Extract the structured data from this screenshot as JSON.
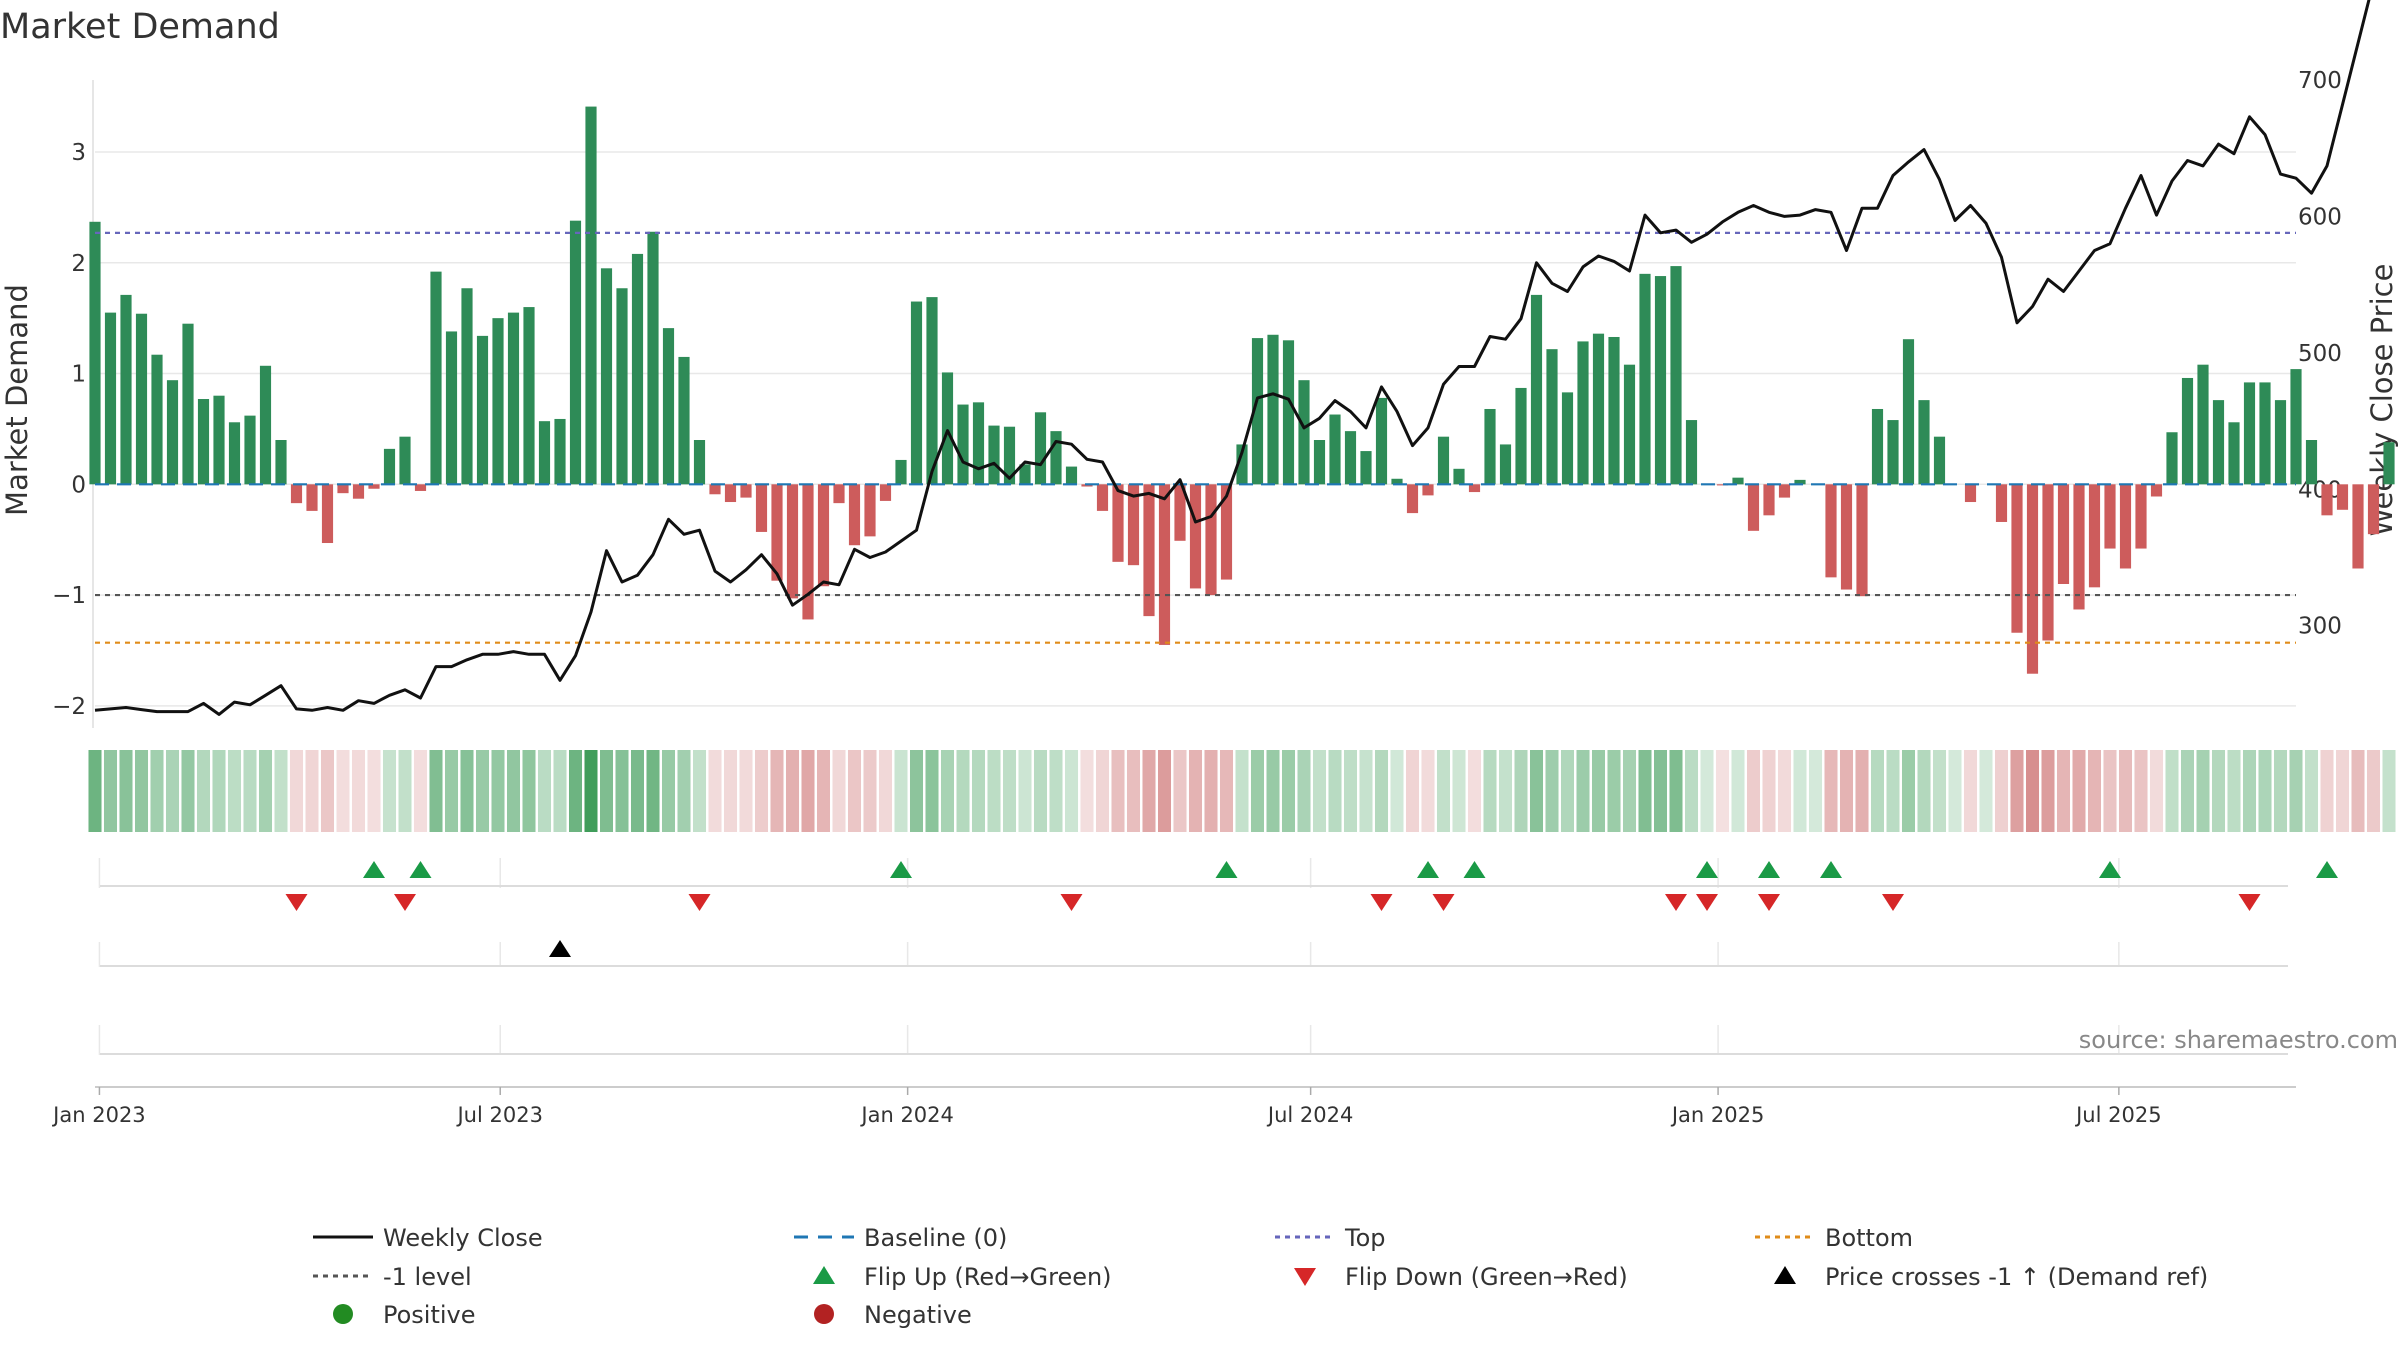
{
  "chart_data": {
    "type": "bar",
    "title": "Market Demand",
    "ylabel": "Market Demand",
    "y2label": "Weekly Close Price",
    "ylim": [
      -2.2,
      3.65
    ],
    "y2lim": [
      225,
      700
    ],
    "yticks": [
      -2,
      -1,
      0,
      1,
      2,
      3
    ],
    "y2ticks": [
      300,
      400,
      500,
      600,
      700
    ],
    "x_start": "2022-12-30",
    "x_end": "2025-09-19",
    "xticks": [
      {
        "date": "2023-01-01",
        "label": "Jan 2023"
      },
      {
        "date": "2023-07-01",
        "label": "Jul 2023"
      },
      {
        "date": "2024-01-01",
        "label": "Jan 2024"
      },
      {
        "date": "2024-07-01",
        "label": "Jul 2024"
      },
      {
        "date": "2025-01-01",
        "label": "Jan 2025"
      },
      {
        "date": "2025-07-01",
        "label": "Jul 2025"
      }
    ],
    "first_week": "2022-12-30",
    "market_demand_weekly": [
      2.37,
      1.55,
      1.71,
      1.54,
      1.17,
      0.94,
      1.45,
      0.77,
      0.8,
      0.56,
      0.62,
      1.07,
      0.4,
      -0.17,
      -0.24,
      -0.53,
      -0.08,
      -0.13,
      -0.04,
      0.32,
      0.43,
      -0.06,
      1.92,
      1.38,
      1.77,
      1.34,
      1.5,
      1.55,
      1.6,
      0.57,
      0.59,
      2.38,
      3.41,
      1.95,
      1.77,
      2.08,
      2.28,
      1.41,
      1.15,
      0.4,
      -0.09,
      -0.16,
      -0.12,
      -0.43,
      -0.87,
      -1.03,
      -1.22,
      -0.92,
      -0.17,
      -0.55,
      -0.47,
      -0.15,
      0.22,
      1.65,
      1.69,
      1.01,
      0.72,
      0.74,
      0.53,
      0.52,
      0.18,
      0.65,
      0.48,
      0.16,
      -0.02,
      -0.24,
      -0.7,
      -0.73,
      -1.19,
      -1.45,
      -0.51,
      -0.94,
      -1.0,
      -0.86,
      0.36,
      1.32,
      1.35,
      1.3,
      0.94,
      0.4,
      0.63,
      0.48,
      0.3,
      0.78,
      0.05,
      -0.26,
      -0.1,
      0.43,
      0.14,
      -0.07,
      0.68,
      0.36,
      0.87,
      1.71,
      1.22,
      0.83,
      1.29,
      1.36,
      1.33,
      1.08,
      1.9,
      1.88,
      1.97,
      0.58,
      0.0,
      -0.01,
      0.06,
      -0.42,
      -0.28,
      -0.12,
      0.04,
      0.0,
      -0.84,
      -0.95,
      -1.01,
      0.68,
      0.58,
      1.31,
      0.76,
      0.43,
      0.0,
      -0.16,
      0.0,
      -0.34,
      -1.34,
      -1.71,
      -1.41,
      -0.9,
      -1.13,
      -0.93,
      -0.58,
      -0.76,
      -0.58,
      -0.11,
      0.47,
      0.96,
      1.08,
      0.76,
      0.56,
      0.92,
      0.92,
      0.76,
      1.04,
      0.4,
      -0.28,
      -0.23,
      -0.76,
      -0.45,
      0.38
    ],
    "weekly_close_anchors": [
      [
        0,
        238
      ],
      [
        2,
        240
      ],
      [
        4,
        237
      ],
      [
        6,
        237
      ],
      [
        7,
        243
      ],
      [
        8,
        235
      ],
      [
        9,
        244
      ],
      [
        10,
        242
      ],
      [
        11,
        249
      ],
      [
        12,
        256
      ],
      [
        13,
        239
      ],
      [
        14,
        238
      ],
      [
        15,
        240
      ],
      [
        16,
        238
      ],
      [
        17,
        245
      ],
      [
        18,
        243
      ],
      [
        19,
        249
      ],
      [
        20,
        253
      ],
      [
        21,
        247
      ],
      [
        22,
        270
      ],
      [
        23,
        270
      ],
      [
        24,
        275
      ],
      [
        25,
        279
      ],
      [
        26,
        279
      ],
      [
        27,
        281
      ],
      [
        28,
        279
      ],
      [
        29,
        279
      ],
      [
        30,
        260
      ],
      [
        31,
        278
      ],
      [
        32,
        310
      ],
      [
        33,
        355
      ],
      [
        34,
        332
      ],
      [
        35,
        337
      ],
      [
        36,
        352
      ],
      [
        37,
        378
      ],
      [
        38,
        367
      ],
      [
        39,
        370
      ],
      [
        40,
        340
      ],
      [
        41,
        332
      ],
      [
        42,
        341
      ],
      [
        43,
        352
      ],
      [
        44,
        338
      ],
      [
        45,
        315
      ],
      [
        46,
        323
      ],
      [
        47,
        332
      ],
      [
        48,
        330
      ],
      [
        49,
        356
      ],
      [
        50,
        350
      ],
      [
        51,
        354
      ],
      [
        52,
        362
      ],
      [
        53,
        370
      ],
      [
        54,
        413
      ],
      [
        55,
        443
      ],
      [
        56,
        420
      ],
      [
        57,
        415
      ],
      [
        58,
        419
      ],
      [
        59,
        408
      ],
      [
        60,
        420
      ],
      [
        61,
        418
      ],
      [
        62,
        435
      ],
      [
        63,
        433
      ],
      [
        64,
        422
      ],
      [
        65,
        420
      ],
      [
        66,
        399
      ],
      [
        67,
        395
      ],
      [
        68,
        397
      ],
      [
        69,
        393
      ],
      [
        70,
        407
      ],
      [
        71,
        376
      ],
      [
        72,
        380
      ],
      [
        73,
        395
      ],
      [
        74,
        427
      ],
      [
        75,
        467
      ],
      [
        76,
        470
      ],
      [
        77,
        466
      ],
      [
        78,
        445
      ],
      [
        79,
        452
      ],
      [
        80,
        465
      ],
      [
        81,
        457
      ],
      [
        82,
        445
      ],
      [
        83,
        475
      ],
      [
        84,
        457
      ],
      [
        85,
        432
      ],
      [
        86,
        445
      ],
      [
        87,
        477
      ],
      [
        88,
        490
      ],
      [
        89,
        490
      ],
      [
        90,
        512
      ],
      [
        91,
        510
      ],
      [
        92,
        525
      ],
      [
        93,
        566
      ],
      [
        94,
        551
      ],
      [
        95,
        545
      ],
      [
        96,
        563
      ],
      [
        97,
        571
      ],
      [
        98,
        567
      ],
      [
        99,
        560
      ],
      [
        100,
        601
      ],
      [
        101,
        588
      ],
      [
        102,
        590
      ],
      [
        103,
        581
      ],
      [
        104,
        587
      ],
      [
        105,
        596
      ],
      [
        106,
        603
      ],
      [
        107,
        608
      ],
      [
        108,
        603
      ],
      [
        109,
        600
      ],
      [
        110,
        601
      ],
      [
        111,
        605
      ],
      [
        112,
        603
      ],
      [
        113,
        575
      ],
      [
        114,
        606
      ],
      [
        115,
        606
      ],
      [
        116,
        630
      ],
      [
        117,
        640
      ],
      [
        118,
        649
      ],
      [
        119,
        627
      ],
      [
        120,
        597
      ],
      [
        121,
        608
      ],
      [
        122,
        595
      ],
      [
        123,
        570
      ],
      [
        124,
        522
      ],
      [
        125,
        534
      ],
      [
        126,
        554
      ],
      [
        127,
        545
      ],
      [
        128,
        560
      ],
      [
        129,
        575
      ],
      [
        130,
        580
      ],
      [
        131,
        606
      ],
      [
        132,
        630
      ],
      [
        133,
        601
      ],
      [
        134,
        626
      ],
      [
        135,
        641
      ],
      [
        136,
        637
      ],
      [
        137,
        653
      ],
      [
        138,
        646
      ],
      [
        139,
        673
      ],
      [
        140,
        660
      ],
      [
        141,
        631
      ],
      [
        142,
        628
      ],
      [
        143,
        617
      ],
      [
        144,
        637
      ],
      [
        145,
        682
      ]
    ],
    "reference_lines": [
      {
        "name": "Top",
        "value": 2.27,
        "color": "#6666bb"
      },
      {
        "name": "-1 level",
        "value": -1.0,
        "color": "#555555"
      },
      {
        "name": "Bottom",
        "value": -1.43,
        "color": "#e08c1a"
      },
      {
        "name": "Baseline (0)",
        "value": 0.0,
        "color": "#1f77b4"
      }
    ],
    "flip_up_weeks": [
      18,
      21,
      52,
      73,
      86,
      89,
      104,
      108,
      112,
      130,
      144
    ],
    "flip_down_weeks": [
      13,
      20,
      39,
      63,
      83,
      87,
      102,
      104,
      108,
      116,
      139
    ],
    "price_cross_weeks": [
      30
    ],
    "colors": {
      "positive": "#2e8b57",
      "negative": "#cd5c5c",
      "price": "#111111",
      "flip_up": "#1a9a46",
      "flip_down": "#d62728",
      "cross": "#000000"
    }
  },
  "source_note": "source: sharemaestro.com",
  "legend": [
    {
      "key": "weekly-close",
      "label": "Weekly Close",
      "marker": "line",
      "color": "#111111"
    },
    {
      "key": "baseline",
      "label": "Baseline (0)",
      "marker": "dash",
      "color": "#1f77b4"
    },
    {
      "key": "top",
      "label": "Top",
      "marker": "dot",
      "color": "#6666bb"
    },
    {
      "key": "bottom",
      "label": "Bottom",
      "marker": "dot",
      "color": "#e08c1a"
    },
    {
      "key": "minus-one",
      "label": "-1 level",
      "marker": "dot",
      "color": "#555555"
    },
    {
      "key": "flip-up",
      "label": "Flip Up (Red→Green)",
      "marker": "triangle-up",
      "color": "#1a9a46"
    },
    {
      "key": "flip-down",
      "label": "Flip Down (Green→Red)",
      "marker": "triangle-down",
      "color": "#d62728"
    },
    {
      "key": "price-cross",
      "label": "Price crosses -1 ↑ (Demand ref)",
      "marker": "triangle-up",
      "color": "#000000"
    },
    {
      "key": "positive",
      "label": "Positive",
      "marker": "circle",
      "color": "#228b22"
    },
    {
      "key": "negative",
      "label": "Negative",
      "marker": "circle",
      "color": "#b22222"
    }
  ]
}
